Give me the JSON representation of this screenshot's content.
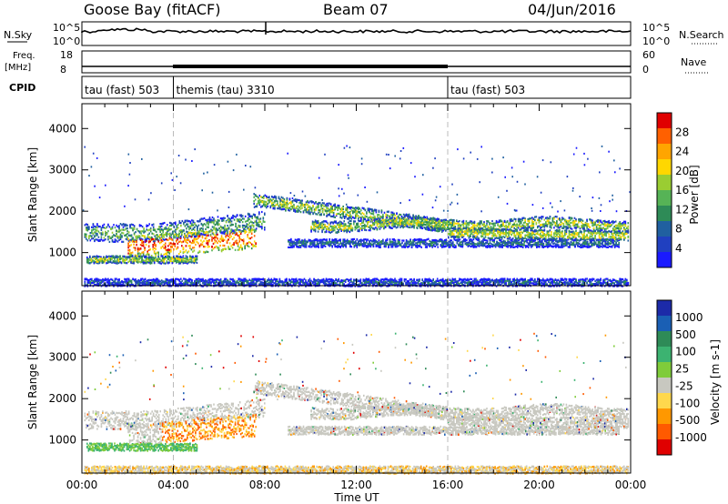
{
  "header": {
    "station": "Goose Bay (fitACF)",
    "beam": "Beam 07",
    "date": "04/Jun/2016"
  },
  "top_panels": {
    "nsky": {
      "label": "N.Sky",
      "tick_hi": "10^5",
      "tick_lo": "10^0",
      "right_label": "N.Search",
      "right_tick_hi": "10^5",
      "right_tick_lo": "10^0"
    },
    "freq": {
      "label": "Freq.",
      "unit": "[MHz]",
      "tick_hi": "18",
      "tick_lo": "8",
      "right_label": "Nave",
      "right_tick_hi": "60",
      "right_tick_lo": "0"
    },
    "cpid": {
      "label": "CPID",
      "segments": [
        {
          "name": "tau (fast) 503",
          "start_hour": 0,
          "end_hour": 4
        },
        {
          "name": "themis (tau) 3310",
          "start_hour": 4,
          "end_hour": 16
        },
        {
          "name": "tau (fast) 503",
          "start_hour": 16,
          "end_hour": 24
        }
      ]
    }
  },
  "chart_data": [
    {
      "type": "heatmap",
      "title": "",
      "ylabel": "Slant Range [km]",
      "xlabel": "",
      "ylim": [
        200,
        4600
      ],
      "xlim": [
        0,
        24
      ],
      "yticks": [
        "1000",
        "2000",
        "3000",
        "4000"
      ],
      "colorbar": {
        "label": "Power [dB]",
        "ticks": [
          "4",
          "8",
          "12",
          "16",
          "20",
          "24",
          "28"
        ],
        "colors": [
          "#1a1aff",
          "#2040c0",
          "#2060a0",
          "#2e8b57",
          "#56b356",
          "#9acd32",
          "#ffd700",
          "#ffa500",
          "#ff6000",
          "#e00000"
        ]
      }
    },
    {
      "type": "heatmap",
      "title": "",
      "ylabel": "Slant Range [km]",
      "xlabel": "Time UT",
      "ylim": [
        200,
        4600
      ],
      "xlim": [
        0,
        24
      ],
      "yticks": [
        "1000",
        "2000",
        "3000",
        "4000"
      ],
      "xticks": [
        "00:00",
        "04:00",
        "08:00",
        "12:00",
        "16:00",
        "20:00",
        "00:00"
      ],
      "colorbar": {
        "label": "Velocity [m s-1]",
        "ticks": [
          "1000",
          "500",
          "100",
          "25",
          "-25",
          "-100",
          "-500",
          "-1000"
        ],
        "colors": [
          "#1c2aa8",
          "#1a5fb4",
          "#2e8b57",
          "#3cb371",
          "#7fcc3a",
          "#c8c8c0",
          "#ffd84d",
          "#ff9800",
          "#ff5a00",
          "#e00000"
        ]
      }
    }
  ]
}
